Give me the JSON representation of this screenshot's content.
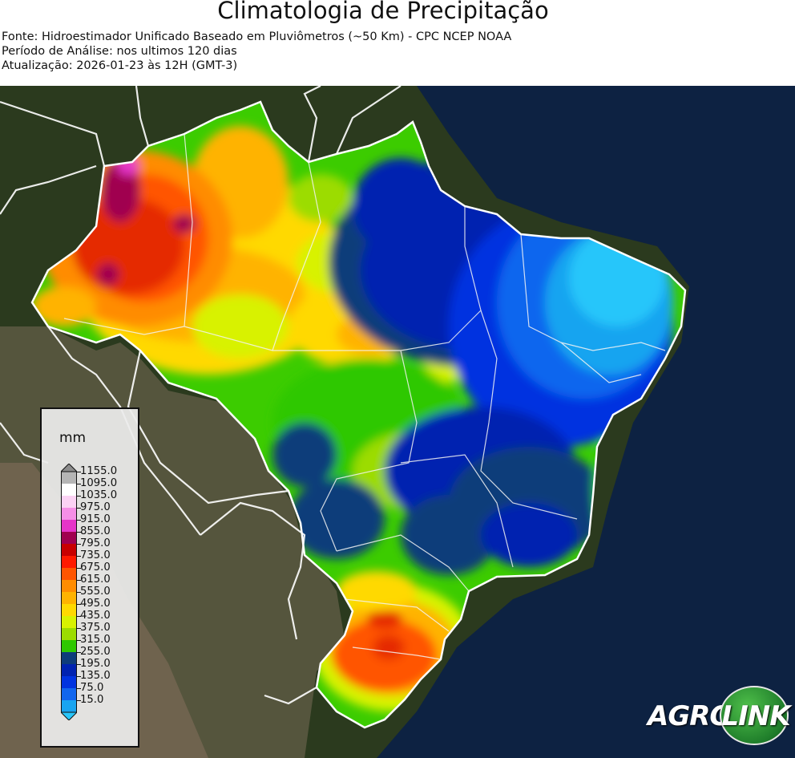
{
  "header": {
    "title": "Climatologia de Precipitação",
    "source": "Fonte: Hidroestimador Unificado Baseado em Pluviômetros (~50 Km) - CPC NCEP NOAA",
    "period": "Período de Análise: nos ultimos 120 dias",
    "updated": "Atualização: 2026-01-23 às 12H (GMT-3)"
  },
  "legend": {
    "unit": "mm",
    "ticks": [
      "1155.0",
      "1095.0",
      "1035.0",
      "975.0",
      "915.0",
      "855.0",
      "795.0",
      "735.0",
      "675.0",
      "615.0",
      "555.0",
      "495.0",
      "435.0",
      "375.0",
      "315.0",
      "255.0",
      "195.0",
      "135.0",
      "75.0",
      "15.0"
    ],
    "colors": [
      "#8c8c8c",
      "#b5b5b5",
      "#ffffff",
      "#fbd2f4",
      "#f58fe6",
      "#e534c8",
      "#a0004f",
      "#c80000",
      "#ff1a00",
      "#ff5500",
      "#ff8c00",
      "#ffb300",
      "#ffd900",
      "#d8f200",
      "#9cdc00",
      "#2fc800",
      "#0e3c7a",
      "#0022b0",
      "#0033e0",
      "#1166ee",
      "#19a4f0",
      "#28c6fa"
    ]
  },
  "logo": {
    "part1": "AGRO",
    "part2": "LINK"
  },
  "map": {
    "regions": [
      {
        "name": "north-west",
        "level": "675-795",
        "color": "#e52b00"
      },
      {
        "name": "amazon-center",
        "level": "495-615",
        "color": "#ffb300"
      },
      {
        "name": "central",
        "level": "375-495",
        "color": "#9cdc00"
      },
      {
        "name": "north-east",
        "level": "15-255",
        "color": "#0033e0"
      },
      {
        "name": "south",
        "level": "615-735",
        "color": "#ff5500"
      }
    ]
  }
}
